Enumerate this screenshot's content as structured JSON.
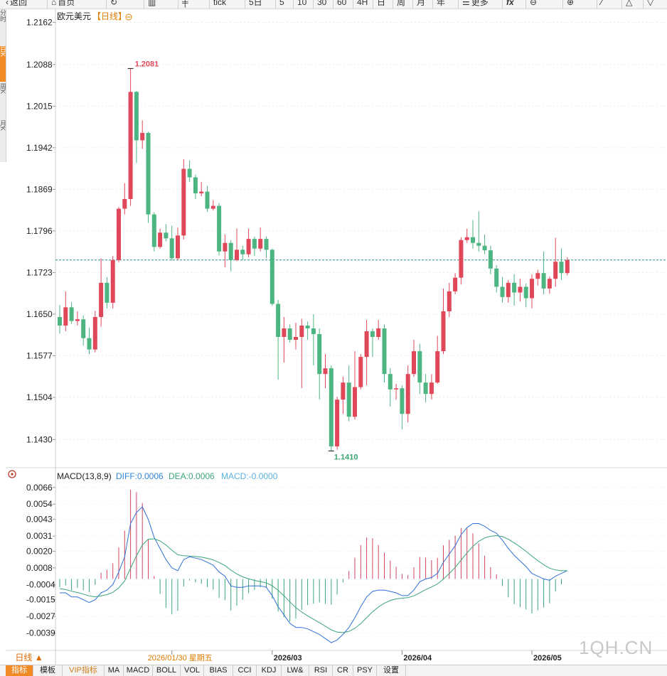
{
  "toolbar": {
    "items": [
      {
        "label": "返回",
        "icon": "back-icon"
      },
      {
        "label": "首页",
        "icon": "home-icon"
      },
      {
        "label": "",
        "icon": "refresh-icon"
      },
      {
        "label": "",
        "icon": "bar-chart-icon"
      },
      {
        "label": "",
        "icon": "candlestick-icon"
      },
      {
        "label": "tick",
        "icon": ""
      },
      {
        "label": "5日",
        "icon": ""
      },
      {
        "label": "5",
        "icon": ""
      },
      {
        "label": "10",
        "icon": ""
      },
      {
        "label": "30",
        "icon": ""
      },
      {
        "label": "60",
        "icon": ""
      },
      {
        "label": "4H",
        "icon": ""
      },
      {
        "label": "日",
        "icon": ""
      },
      {
        "label": "周",
        "icon": ""
      },
      {
        "label": "月",
        "icon": ""
      },
      {
        "label": "年",
        "icon": ""
      },
      {
        "label": "更多",
        "icon": "menu-icon"
      },
      {
        "label": "fx",
        "icon": "function-icon"
      },
      {
        "label": "",
        "icon": "zoom-out-icon"
      },
      {
        "label": "",
        "icon": "zoom-in-icon"
      },
      {
        "label": "",
        "icon": "draw-line-icon"
      },
      {
        "label": "",
        "icon": "triangle-up-icon"
      },
      {
        "label": "",
        "icon": "triangle-down-icon"
      }
    ]
  },
  "left_tabs": [
    "分时",
    "日K",
    "周K",
    "月K"
  ],
  "main_chart": {
    "title": "欧元美元",
    "period_label": "【日线】",
    "high_marker": "1.2081",
    "low_marker": "1.1410"
  },
  "macd_panel": {
    "title": "MACD(13,8,9)",
    "diff_label": "DIFF:0.0006",
    "dea_label": "DEA:0.0006",
    "macd_label": "MACD:-0.0000"
  },
  "chart_data": {
    "type": "candlestick",
    "title": "",
    "price_axis_ticks": [
      "1.2162",
      "1.2088",
      "1.2015",
      "1.1942",
      "1.1869",
      "1.1796",
      "1.1723",
      "1.1650",
      "1.1577",
      "1.1504",
      "1.1430"
    ],
    "ylim": [
      1.1393,
      1.2185
    ],
    "current_price_line": 1.1745,
    "date_labels": [
      {
        "text": "2026/01/30 星期五",
        "index": 19
      },
      {
        "text": "2026/03",
        "index": 36
      },
      {
        "text": "2026/04",
        "index": 58
      },
      {
        "text": "2026/05",
        "index": 80
      }
    ],
    "candles": [
      [
        1.1645,
        1.163,
        1.1666,
        1.1616
      ],
      [
        1.163,
        1.1662,
        1.169,
        1.162
      ],
      [
        1.1662,
        1.1638,
        1.1671,
        1.1633
      ],
      [
        1.1638,
        1.1641,
        1.1655,
        1.163
      ],
      [
        1.1641,
        1.1608,
        1.1648,
        1.1595
      ],
      [
        1.1608,
        1.1588,
        1.1626,
        1.158
      ],
      [
        1.1588,
        1.1645,
        1.1656,
        1.1583
      ],
      [
        1.1645,
        1.1705,
        1.1748,
        1.1628
      ],
      [
        1.1705,
        1.167,
        1.1715,
        1.166
      ],
      [
        1.167,
        1.1745,
        1.1752,
        1.166
      ],
      [
        1.1745,
        1.1835,
        1.1838,
        1.1741
      ],
      [
        1.1835,
        1.1852,
        1.188,
        1.1825
      ],
      [
        1.1852,
        1.204,
        1.2081,
        1.184
      ],
      [
        1.204,
        1.1955,
        1.2042,
        1.1915
      ],
      [
        1.1955,
        1.1968,
        1.199,
        1.194
      ],
      [
        1.1968,
        1.1825,
        1.197,
        1.181
      ],
      [
        1.1825,
        1.1768,
        1.1829,
        1.176
      ],
      [
        1.1768,
        1.1793,
        1.18,
        1.1765
      ],
      [
        1.1793,
        1.1783,
        1.1808,
        1.1778
      ],
      [
        1.1783,
        1.1748,
        1.1805,
        1.1744
      ],
      [
        1.1748,
        1.1788,
        1.1802,
        1.1745
      ],
      [
        1.1788,
        1.1905,
        1.1922,
        1.1781
      ],
      [
        1.1905,
        1.189,
        1.192,
        1.1882
      ],
      [
        1.189,
        1.1862,
        1.1895,
        1.1852
      ],
      [
        1.1862,
        1.1865,
        1.1882,
        1.1857
      ],
      [
        1.1865,
        1.1835,
        1.1875,
        1.183
      ],
      [
        1.1835,
        1.184,
        1.185,
        1.1832
      ],
      [
        1.184,
        1.176,
        1.1845,
        1.1753
      ],
      [
        1.176,
        1.1775,
        1.179,
        1.1732
      ],
      [
        1.1775,
        1.1745,
        1.178,
        1.1725
      ],
      [
        1.1745,
        1.1763,
        1.18,
        1.1743
      ],
      [
        1.1763,
        1.1755,
        1.177,
        1.1745
      ],
      [
        1.1755,
        1.1782,
        1.18,
        1.175
      ],
      [
        1.1782,
        1.1765,
        1.1786,
        1.1752
      ],
      [
        1.1765,
        1.1782,
        1.1802,
        1.176
      ],
      [
        1.1782,
        1.1763,
        1.1786,
        1.1748
      ],
      [
        1.1763,
        1.1668,
        1.1765,
        1.1665
      ],
      [
        1.1668,
        1.161,
        1.1675,
        1.1535
      ],
      [
        1.161,
        1.1625,
        1.1645,
        1.1565
      ],
      [
        1.1625,
        1.1605,
        1.1632,
        1.16
      ],
      [
        1.1605,
        1.161,
        1.1635,
        1.1588
      ],
      [
        1.161,
        1.163,
        1.1642,
        1.152
      ],
      [
        1.163,
        1.1625,
        1.1637,
        1.1605
      ],
      [
        1.1625,
        1.1615,
        1.165,
        1.156
      ],
      [
        1.1615,
        1.1545,
        1.1625,
        1.15
      ],
      [
        1.1545,
        1.1555,
        1.158,
        1.152
      ],
      [
        1.1555,
        1.1418,
        1.156,
        1.141
      ],
      [
        1.1418,
        1.15,
        1.1505,
        1.1412
      ],
      [
        1.15,
        1.153,
        1.154,
        1.1475
      ],
      [
        1.153,
        1.147,
        1.156,
        1.1462
      ],
      [
        1.147,
        1.1522,
        1.1585,
        1.1465
      ],
      [
        1.1522,
        1.1575,
        1.158,
        1.1518
      ],
      [
        1.1575,
        1.162,
        1.164,
        1.1525
      ],
      [
        1.162,
        1.161,
        1.1625,
        1.1575
      ],
      [
        1.161,
        1.1625,
        1.164,
        1.1605
      ],
      [
        1.1625,
        1.1545,
        1.1632,
        1.153
      ],
      [
        1.1545,
        1.1518,
        1.1555,
        1.1488
      ],
      [
        1.1518,
        1.152,
        1.1528,
        1.15
      ],
      [
        1.152,
        1.1475,
        1.1525,
        1.1448
      ],
      [
        1.1475,
        1.1545,
        1.156,
        1.146
      ],
      [
        1.1545,
        1.1585,
        1.1605,
        1.154
      ],
      [
        1.1585,
        1.153,
        1.1598,
        1.151
      ],
      [
        1.153,
        1.151,
        1.1545,
        1.1495
      ],
      [
        1.151,
        1.153,
        1.1545,
        1.15
      ],
      [
        1.153,
        1.1585,
        1.1612,
        1.1528
      ],
      [
        1.1585,
        1.1655,
        1.1695,
        1.158
      ],
      [
        1.1655,
        1.169,
        1.1705,
        1.1645
      ],
      [
        1.169,
        1.1714,
        1.1722,
        1.1685
      ],
      [
        1.1714,
        1.178,
        1.1785,
        1.1702
      ],
      [
        1.178,
        1.1785,
        1.18,
        1.1775
      ],
      [
        1.1785,
        1.1775,
        1.1815,
        1.1765
      ],
      [
        1.1775,
        1.177,
        1.183,
        1.176
      ],
      [
        1.177,
        1.1762,
        1.179,
        1.1755
      ],
      [
        1.1762,
        1.173,
        1.177,
        1.172
      ],
      [
        1.173,
        1.1698,
        1.1736,
        1.1688
      ],
      [
        1.1698,
        1.168,
        1.1715,
        1.167
      ],
      [
        1.168,
        1.1705,
        1.171,
        1.167
      ],
      [
        1.1705,
        1.1688,
        1.172,
        1.1665
      ],
      [
        1.1688,
        1.1698,
        1.1712,
        1.1672
      ],
      [
        1.1698,
        1.1678,
        1.1704,
        1.1662
      ],
      [
        1.1678,
        1.1712,
        1.172,
        1.166
      ],
      [
        1.1712,
        1.1722,
        1.1728,
        1.17
      ],
      [
        1.1722,
        1.1695,
        1.176,
        1.1685
      ],
      [
        1.1695,
        1.1712,
        1.1716,
        1.1686
      ],
      [
        1.1712,
        1.1742,
        1.1784,
        1.1698
      ],
      [
        1.1742,
        1.1722,
        1.1765,
        1.171
      ],
      [
        1.1722,
        1.1745,
        1.175,
        1.1718
      ]
    ],
    "macd_axis_ticks": [
      "0.0066",
      "0.0054",
      "0.0043",
      "0.0031",
      "0.0020",
      "0.0008",
      "-0.0004",
      "-0.0015",
      "-0.0027",
      "-0.0039"
    ],
    "macd_ylim": [
      -0.0049,
      0.007
    ],
    "diff": [
      -0.001,
      -0.001,
      -0.0013,
      -0.0013,
      -0.0015,
      -0.0017,
      -0.0015,
      -0.001,
      -0.0008,
      -0.0004,
      0.0005,
      0.0016,
      0.004,
      0.0048,
      0.0052,
      0.0043,
      0.003,
      0.0022,
      0.0014,
      0.0008,
      0.0006,
      0.0014,
      0.0016,
      0.0015,
      0.0014,
      0.0012,
      0.001,
      0.0005,
      0.0002,
      -0.0005,
      -0.0006,
      -0.0006,
      -0.0005,
      -0.0005,
      -0.0005,
      -0.0006,
      -0.0012,
      -0.002,
      -0.0026,
      -0.0032,
      -0.0035,
      -0.0035,
      -0.0036,
      -0.0038,
      -0.004,
      -0.0043,
      -0.0046,
      -0.0044,
      -0.004,
      -0.0035,
      -0.0028,
      -0.002,
      -0.0013,
      -0.0009,
      -0.0008,
      -0.0008,
      -0.0009,
      -0.001,
      -0.0012,
      -0.0012,
      -0.0008,
      -0.0002,
      0.0,
      0.0001,
      0.0004,
      0.0012,
      0.0018,
      0.0024,
      0.0032,
      0.0037,
      0.004,
      0.004,
      0.0038,
      0.0035,
      0.0033,
      0.0028,
      0.0022,
      0.0017,
      0.0013,
      0.0009,
      0.0004,
      0.0002,
      0.0,
      -0.0001,
      0.0002,
      0.0004,
      0.0006
    ]
  }
}
